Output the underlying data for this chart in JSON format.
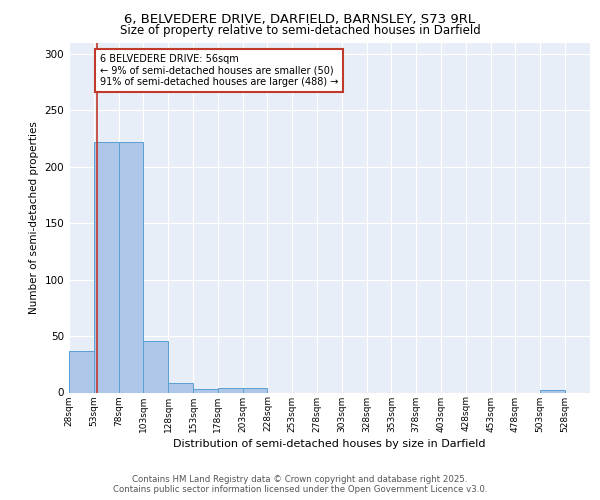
{
  "title_line1": "6, BELVEDERE DRIVE, DARFIELD, BARNSLEY, S73 9RL",
  "title_line2": "Size of property relative to semi-detached houses in Darfield",
  "xlabel": "Distribution of semi-detached houses by size in Darfield",
  "ylabel": "Number of semi-detached properties",
  "bin_labels": [
    "28sqm",
    "53sqm",
    "78sqm",
    "103sqm",
    "128sqm",
    "153sqm",
    "178sqm",
    "203sqm",
    "228sqm",
    "253sqm",
    "278sqm",
    "303sqm",
    "328sqm",
    "353sqm",
    "378sqm",
    "403sqm",
    "428sqm",
    "453sqm",
    "478sqm",
    "503sqm",
    "528sqm"
  ],
  "bin_edges": [
    28,
    53,
    78,
    103,
    128,
    153,
    178,
    203,
    228,
    253,
    278,
    303,
    328,
    353,
    378,
    403,
    428,
    453,
    478,
    503,
    528,
    553
  ],
  "bar_heights": [
    37,
    222,
    222,
    46,
    8,
    3,
    4,
    4,
    0,
    0,
    0,
    0,
    0,
    0,
    0,
    0,
    0,
    0,
    0,
    2,
    0
  ],
  "bar_color": "#aec6e8",
  "bar_edge_color": "#5a9fd4",
  "property_size": 56,
  "property_line_color": "#c0392b",
  "annotation_text": "6 BELVEDERE DRIVE: 56sqm\n← 9% of semi-detached houses are smaller (50)\n91% of semi-detached houses are larger (488) →",
  "annotation_box_color": "#ffffff",
  "annotation_box_edge_color": "#c0392b",
  "ylim": [
    0,
    310
  ],
  "yticks": [
    0,
    50,
    100,
    150,
    200,
    250,
    300
  ],
  "background_color": "#e8eef7",
  "footer_line1": "Contains HM Land Registry data © Crown copyright and database right 2025.",
  "footer_line2": "Contains public sector information licensed under the Open Government Licence v3.0."
}
